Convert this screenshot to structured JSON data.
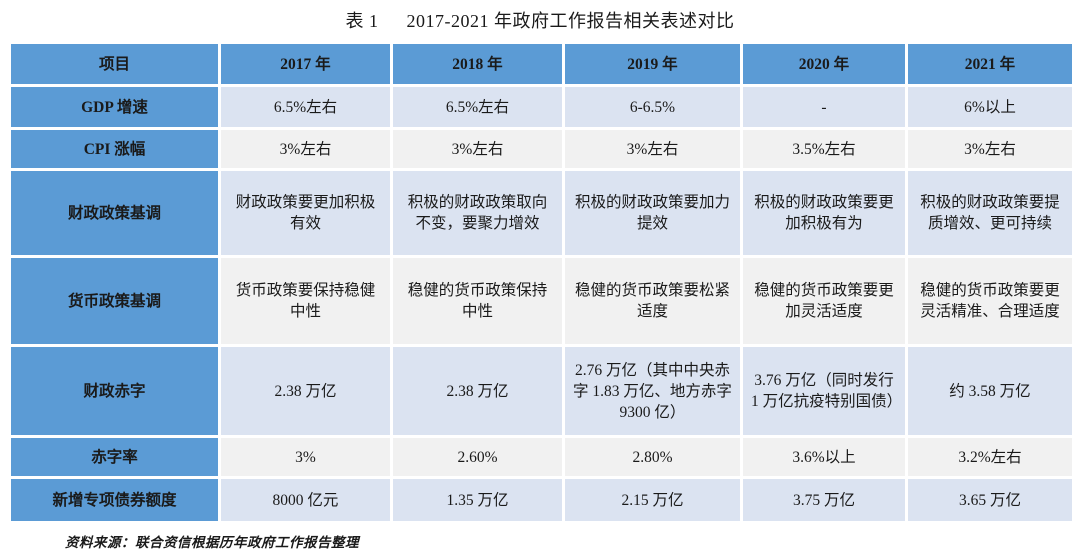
{
  "title": {
    "label": "表 1",
    "text": "2017-2021 年政府工作报告相关表述对比"
  },
  "table": {
    "columns": [
      "项目",
      "2017 年",
      "2018 年",
      "2019 年",
      "2020 年",
      "2021 年"
    ],
    "rows": [
      {
        "label": "GDP 增速",
        "values": [
          "6.5%左右",
          "6.5%左右",
          "6-6.5%",
          "-",
          "6%以上"
        ]
      },
      {
        "label": "CPI 涨幅",
        "values": [
          "3%左右",
          "3%左右",
          "3%左右",
          "3.5%左右",
          "3%左右"
        ]
      },
      {
        "label": "财政政策基调",
        "values": [
          "财政政策要更加积极有效",
          "积极的财政政策取向不变，要聚力增效",
          "积极的财政政策要加力提效",
          "积极的财政政策要更加积极有为",
          "积极的财政政策要提质增效、更可持续"
        ]
      },
      {
        "label": "货币政策基调",
        "values": [
          "货币政策要保持稳健中性",
          "稳健的货币政策保持中性",
          "稳健的货币政策要松紧适度",
          "稳健的货币政策要更加灵活适度",
          "稳健的货币政策要更灵活精准、合理适度"
        ]
      },
      {
        "label": "财政赤字",
        "values": [
          "2.38 万亿",
          "2.38 万亿",
          "2.76 万亿（其中中央赤字 1.83 万亿、地方赤字 9300 亿）",
          "3.76 万亿（同时发行 1 万亿抗疫特别国债）",
          "约 3.58 万亿"
        ]
      },
      {
        "label": "赤字率",
        "values": [
          "3%",
          "2.60%",
          "2.80%",
          "3.6%以上",
          "3.2%左右"
        ]
      },
      {
        "label": "新增专项债券额度",
        "values": [
          "8000 亿元",
          "1.35 万亿",
          "2.15 万亿",
          "3.75 万亿",
          "3.65 万亿"
        ]
      }
    ]
  },
  "source_note": "资料来源：联合资信根据历年政府工作报告整理",
  "colors": {
    "header_blue": "#5B9BD5",
    "row_light_blue": "#DBE3F1",
    "row_light_gray": "#F1F1F1",
    "grid_white": "#FFFFFF",
    "text": "#1A1A1A"
  }
}
